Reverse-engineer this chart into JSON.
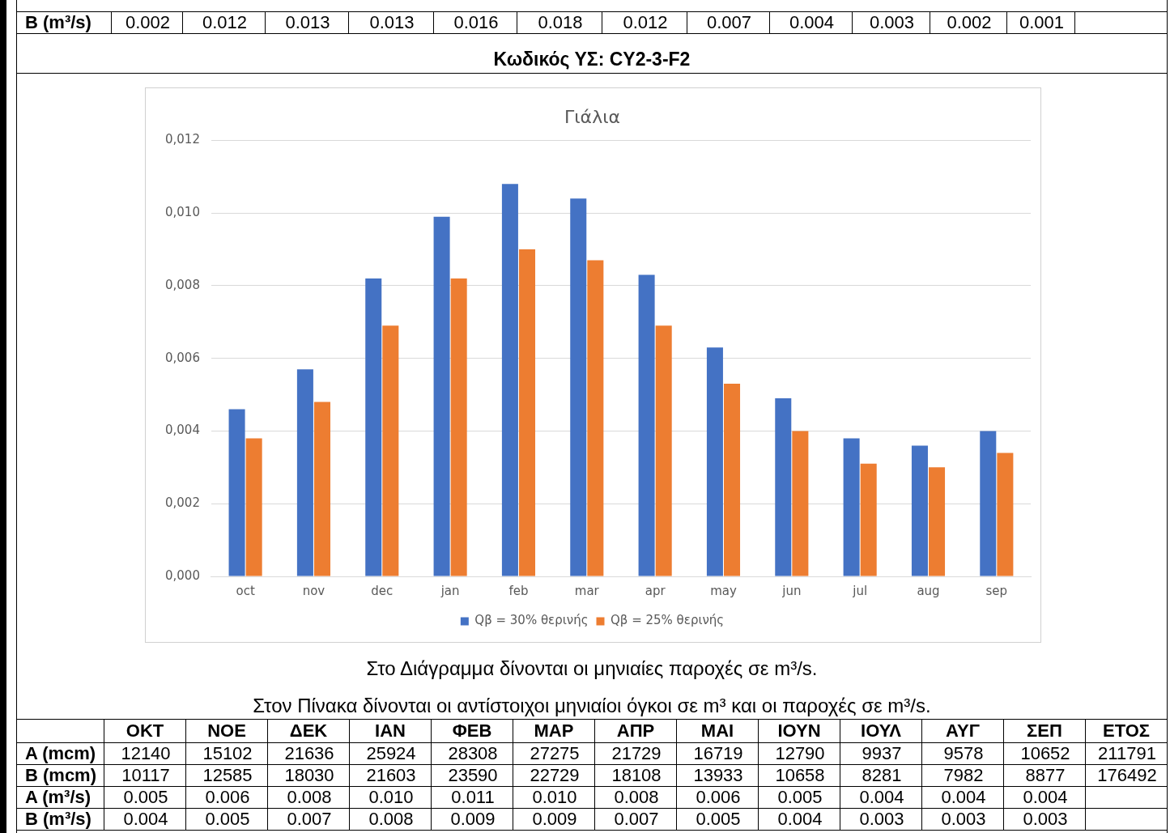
{
  "chart_data": [
    {
      "type": "other",
      "categories": [
        null,
        null,
        null,
        null,
        null,
        null,
        null,
        null,
        null,
        null,
        null,
        null,
        null
      ],
      "y_categories": [
        "B (m³/s)"
      ],
      "annotations": [
        "0.002 0.012 0.013 0.013 0.016 0.018 0.012 0.007 0.004 0.003 0.002 0.001"
      ]
    },
    {
      "type": "bar",
      "title": "Γιάλια",
      "categories": [
        "oct",
        "nov",
        "dec",
        "jan",
        "feb",
        "mar",
        "apr",
        "may",
        "jun",
        "jul",
        "aug",
        "sep"
      ],
      "series": [
        {
          "name": "Qβ = 30% θερινής",
          "color": "#4472c4",
          "values": [
            0.0046,
            0.0057,
            0.0082,
            0.0099,
            0.0108,
            0.0104,
            0.0083,
            0.0063,
            0.0049,
            0.0038,
            0.0036,
            0.004
          ]
        },
        {
          "name": "Qβ = 25% θερινής",
          "color": "#ed7d31",
          "values": [
            0.0038,
            0.0048,
            0.0069,
            0.0082,
            0.009,
            0.0087,
            0.0069,
            0.0053,
            0.004,
            0.0031,
            0.003,
            0.0034
          ]
        }
      ],
      "ylim": [
        0,
        0.012
      ],
      "yticks": [
        {
          "value": 0,
          "label": "0,000"
        },
        {
          "value": 0.002,
          "label": "0,002"
        },
        {
          "value": 0.004,
          "label": "0,004"
        },
        {
          "value": 0.006,
          "label": "0,006"
        },
        {
          "value": 0.008,
          "label": "0,008"
        },
        {
          "value": 0.01,
          "label": "0,010"
        },
        {
          "value": 0.012,
          "label": "0,012"
        }
      ],
      "grid": "y",
      "legend": "bottom",
      "annotations": [
        "Κωδικός ΥΣ: CY2-3-F2",
        "Στο Διάγραμμα δίνονται οι μηνιαίες παροχές σε m³/s.",
        "Στον Πίνακα δίνονται οι αντίστοιχοι μηνιαίοι όγκοι σε m³ και οι παροχές σε m³/s."
      ]
    },
    {
      "type": "other",
      "categories": [
        "ΟΚΤ",
        "ΝΟΕ",
        "ΔΕΚ",
        "ΙΑΝ",
        "ΦΕΒ",
        "ΜΑΡ",
        "ΑΠΡ",
        "ΜΑΙ",
        "ΙΟΥΝ",
        "ΙΟΥΛ",
        "ΑΥΓ",
        "ΣΕΠ",
        "ΕΤΟΣ"
      ],
      "y_categories": [
        "A (mcm)",
        "B (mcm)",
        "A (m³/s)",
        "B (m³/s)"
      ],
      "annotations": [
        "12140 15102 21636 25924 28308 27275 21729 16719 12790 9937 9578 10652 211791",
        "10117 12585 18030 21603 23590 22729 18108 13933 10658 8281 7982 8877 176492",
        "0.005 0.006 0.008 0.010 0.011 0.010 0.008 0.006 0.005 0.004 0.004 0.004",
        "0.004 0.005 0.007 0.008 0.009 0.009 0.007 0.005 0.004 0.003 0.003 0.003"
      ]
    }
  ]
}
